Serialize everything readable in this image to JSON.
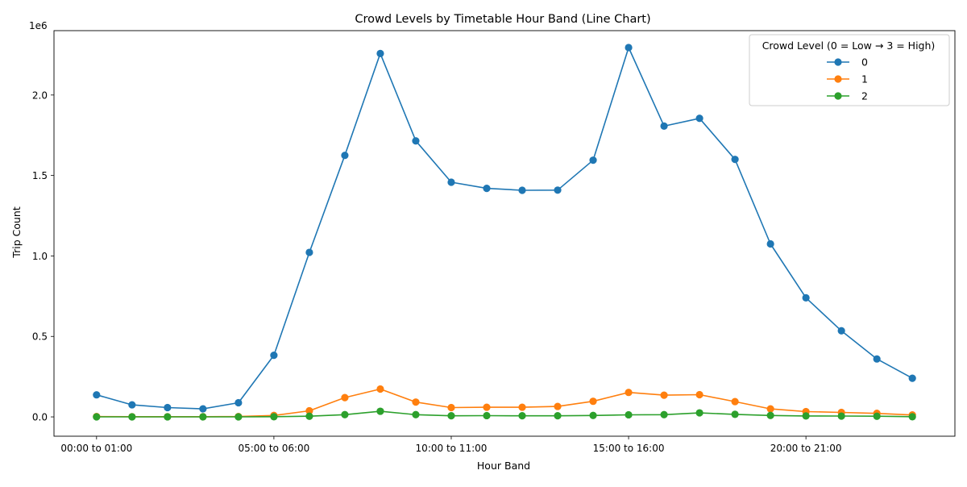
{
  "chart_data": {
    "type": "line",
    "title": "Crowd Levels by Timetable Hour Band (Line Chart)",
    "xlabel": "Hour Band",
    "ylabel": "Trip Count",
    "y_offset_label": "1e6",
    "ylim": [
      -120000,
      2400000
    ],
    "yticks": [
      0,
      500000,
      1000000,
      1500000,
      2000000
    ],
    "ytick_labels": [
      "0.0",
      "0.5",
      "1.0",
      "1.5",
      "2.0"
    ],
    "x_tick_labels": [
      {
        "index": 0,
        "label": "00:00 to 01:00"
      },
      {
        "index": 5,
        "label": "05:00 to 06:00"
      },
      {
        "index": 10,
        "label": "10:00 to 11:00"
      },
      {
        "index": 15,
        "label": "15:00 to 16:00"
      },
      {
        "index": 20,
        "label": "20:00 to 21:00"
      }
    ],
    "grid": false,
    "legend": {
      "title": "Crowd Level (0 = Low → 3 = High)",
      "position": "top-right"
    },
    "series": [
      {
        "name": "0",
        "color": "#1f77b4",
        "values": [
          137000,
          75000,
          58000,
          50000,
          88000,
          383000,
          1022000,
          1625000,
          2258000,
          1715000,
          1458000,
          1420000,
          1408000,
          1409000,
          1595000,
          2295000,
          1807000,
          1855000,
          1600000,
          1075000,
          740000,
          535000,
          360000,
          240000
        ]
      },
      {
        "name": "1",
        "color": "#ff7f0e",
        "values": [
          2000,
          1000,
          1000,
          1000,
          2000,
          9000,
          38000,
          120000,
          173000,
          92000,
          58000,
          60000,
          60000,
          65000,
          97000,
          152000,
          135000,
          138000,
          95000,
          50000,
          33000,
          28000,
          22000,
          12000
        ]
      },
      {
        "name": "2",
        "color": "#2ca02c",
        "values": [
          200,
          100,
          100,
          100,
          200,
          1000,
          4000,
          14000,
          35000,
          14000,
          7000,
          8000,
          7000,
          7000,
          9000,
          13000,
          14000,
          25000,
          16000,
          9000,
          6000,
          5000,
          4000,
          1000
        ]
      }
    ]
  }
}
